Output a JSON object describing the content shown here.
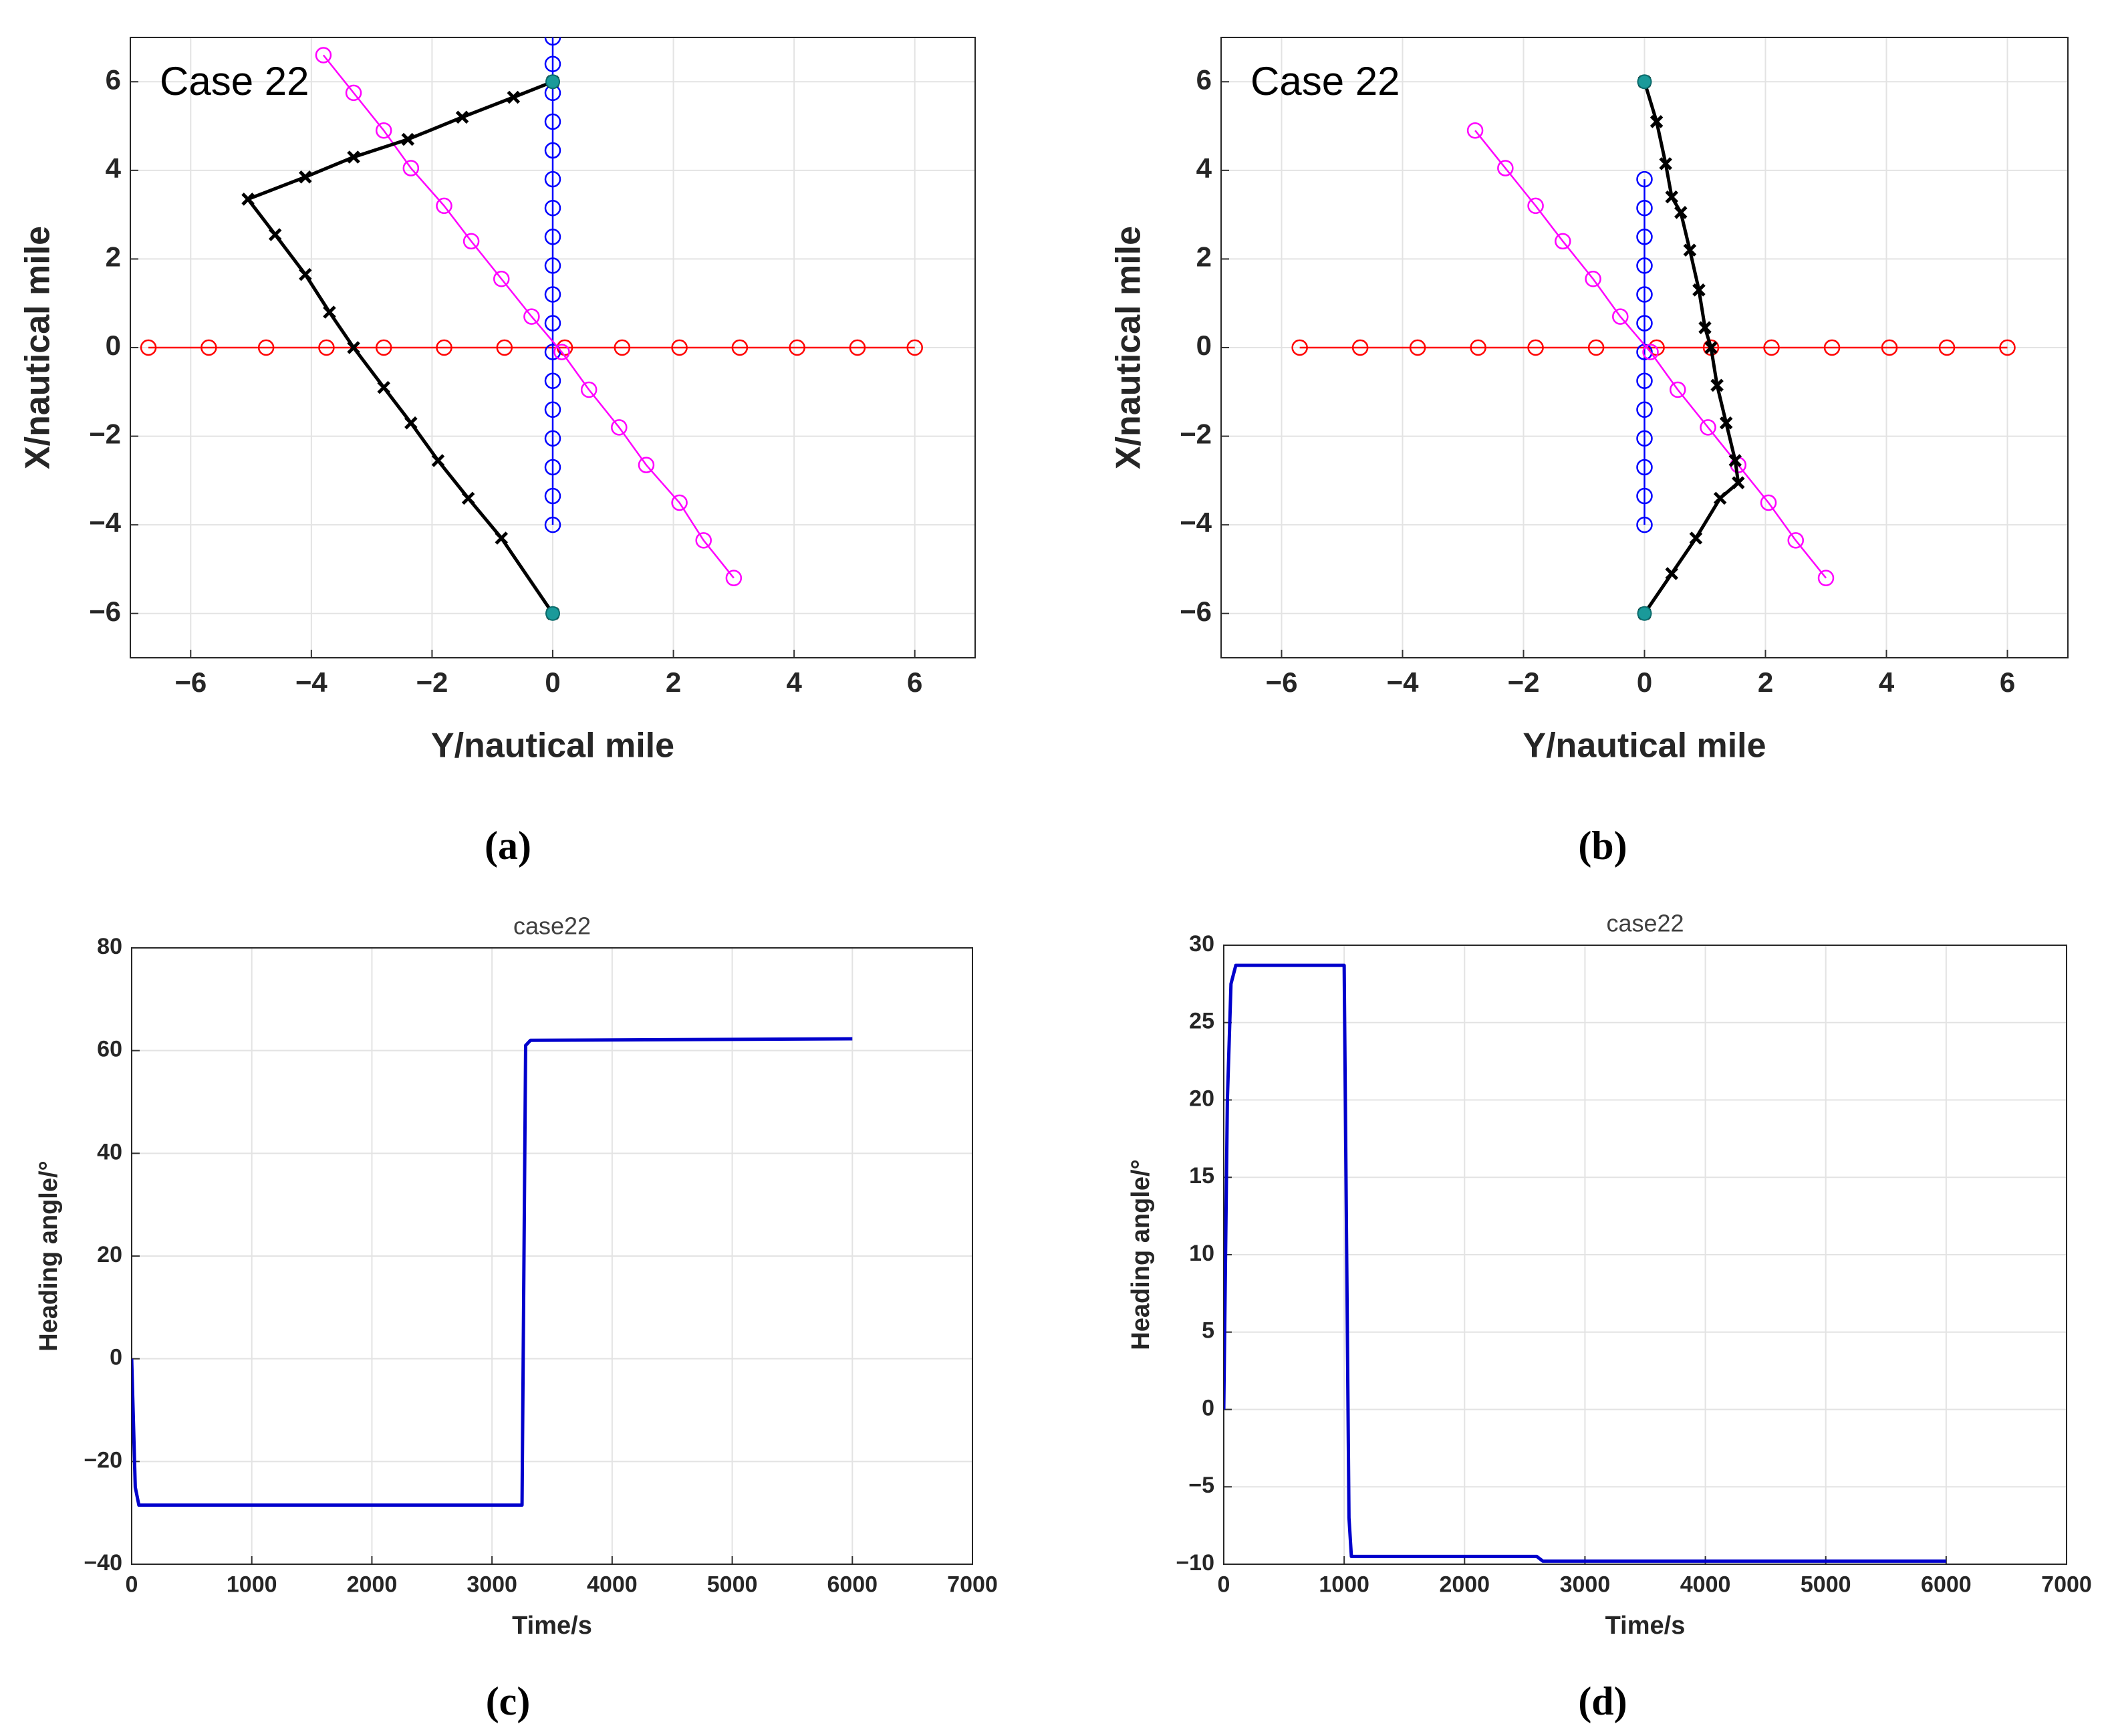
{
  "chart_data": [
    {
      "type": "line",
      "caption": "(a)",
      "annotation": "Case 22",
      "xlabel": "Y/nautical mile",
      "ylabel": "X/nautical mile",
      "xlim": [
        -7,
        7
      ],
      "ylim": [
        -7,
        7
      ],
      "xticks": [
        {
          "value": -6,
          "label": "−6"
        },
        {
          "value": -4,
          "label": "−4"
        },
        {
          "value": -2,
          "label": "−2"
        },
        0,
        2,
        4,
        6
      ],
      "yticks": [
        {
          "value": -6,
          "label": "−6"
        },
        {
          "value": -4,
          "label": "−4"
        },
        {
          "value": -2,
          "label": "−2"
        },
        0,
        2,
        4,
        6
      ],
      "grid": true,
      "series": [
        {
          "color": "#ff0000",
          "marker": "o",
          "x": [
            -6.7,
            -5.7,
            -4.75,
            -3.75,
            -2.8,
            -1.8,
            -0.8,
            0.2,
            1.15,
            2.1,
            3.1,
            4.05,
            5.05,
            6.0
          ],
          "values": [
            0,
            0,
            0,
            0,
            0,
            0,
            0,
            0,
            0,
            0,
            0,
            0,
            0,
            0
          ]
        },
        {
          "color": "#0000ff",
          "marker": "o",
          "x": [
            0,
            0,
            0,
            0,
            0,
            0,
            0,
            0,
            0,
            0,
            0,
            0,
            0,
            0,
            0,
            0,
            0,
            0
          ],
          "values": [
            -4,
            -3.35,
            -2.7,
            -2.05,
            -1.4,
            -0.75,
            -0.1,
            0.55,
            1.2,
            1.85,
            2.5,
            3.15,
            3.8,
            4.45,
            5.1,
            5.75,
            6.4,
            7
          ]
        },
        {
          "color": "#ff00ff",
          "marker": "o",
          "x": [
            3,
            2.5,
            2.1,
            1.55,
            1.1,
            0.6,
            0.15,
            -0.35,
            -0.85,
            -1.35,
            -1.8,
            -2.35,
            -2.8,
            -3.3,
            -3.8
          ],
          "values": [
            -5.2,
            -4.35,
            -3.5,
            -2.65,
            -1.8,
            -0.95,
            -0.1,
            0.7,
            1.55,
            2.4,
            3.2,
            4.05,
            4.9,
            5.75,
            6.6
          ]
        },
        {
          "color": "#000000",
          "marker": "x",
          "width": 5,
          "x": [
            0,
            -0.85,
            -1.4,
            -1.9,
            -2.35,
            -2.8,
            -3.3,
            -3.7,
            -4.1,
            -4.6,
            -5.05,
            -4.1,
            -3.3,
            -2.4,
            -1.5,
            -0.65,
            0
          ],
          "values": [
            -6,
            -4.3,
            -3.4,
            -2.55,
            -1.7,
            -0.9,
            0,
            0.8,
            1.65,
            2.55,
            3.35,
            3.85,
            4.3,
            4.7,
            5.2,
            5.65,
            6
          ]
        },
        {
          "color": "#1a9a9a",
          "marker": "dot",
          "noline": true,
          "x": [
            0,
            0
          ],
          "values": [
            -6,
            6
          ]
        }
      ]
    },
    {
      "type": "line",
      "caption": "(b)",
      "annotation": "Case 22",
      "xlabel": "Y/nautical mile",
      "ylabel": "X/nautical mile",
      "xlim": [
        -7,
        7
      ],
      "ylim": [
        -7,
        7
      ],
      "xticks": [
        {
          "value": -6,
          "label": "−6"
        },
        {
          "value": -4,
          "label": "−4"
        },
        {
          "value": -2,
          "label": "−2"
        },
        0,
        2,
        4,
        6
      ],
      "yticks": [
        {
          "value": -6,
          "label": "−6"
        },
        {
          "value": -4,
          "label": "−4"
        },
        {
          "value": -2,
          "label": "−2"
        },
        0,
        2,
        4,
        6
      ],
      "grid": true,
      "series": [
        {
          "color": "#ff0000",
          "marker": "o",
          "x": [
            -5.7,
            -4.7,
            -3.75,
            -2.75,
            -1.8,
            -0.8,
            0.2,
            1.1,
            2.1,
            3.1,
            4.05,
            5.0,
            6.0
          ],
          "values": [
            0,
            0,
            0,
            0,
            0,
            0,
            0,
            0,
            0,
            0,
            0,
            0,
            0
          ]
        },
        {
          "color": "#0000ff",
          "marker": "o",
          "x": [
            0,
            0,
            0,
            0,
            0,
            0,
            0,
            0,
            0,
            0,
            0,
            0,
            0
          ],
          "values": [
            -4,
            -3.35,
            -2.7,
            -2.05,
            -1.4,
            -0.75,
            -0.1,
            0.55,
            1.2,
            1.85,
            2.5,
            3.15,
            3.8
          ]
        },
        {
          "color": "#ff00ff",
          "marker": "o",
          "x": [
            3,
            2.5,
            2.05,
            1.55,
            1.05,
            0.55,
            0.1,
            -0.4,
            -0.85,
            -1.35,
            -1.8,
            -2.3,
            -2.8
          ],
          "values": [
            -5.2,
            -4.35,
            -3.5,
            -2.65,
            -1.8,
            -0.95,
            -0.1,
            0.7,
            1.55,
            2.4,
            3.2,
            4.05,
            4.9
          ]
        },
        {
          "color": "#000000",
          "marker": "x",
          "width": 5,
          "x": [
            0,
            0.45,
            0.85,
            1.25,
            1.55,
            1.5,
            1.35,
            1.2,
            1.1,
            1.0,
            0.9,
            0.75,
            0.6,
            0.45,
            0.35,
            0.2,
            0
          ],
          "values": [
            -6,
            -5.1,
            -4.3,
            -3.4,
            -3.05,
            -2.55,
            -1.7,
            -0.85,
            0,
            0.45,
            1.3,
            2.2,
            3.05,
            3.4,
            4.15,
            5.1,
            6
          ]
        },
        {
          "color": "#1a9a9a",
          "marker": "dot",
          "noline": true,
          "x": [
            0,
            0
          ],
          "values": [
            -6,
            6
          ]
        }
      ]
    },
    {
      "type": "line",
      "caption": "(c)",
      "title": "case22",
      "xlabel": "Time/s",
      "ylabel": "Heading angle/°",
      "xlim": [
        0,
        7000
      ],
      "ylim": [
        -40,
        80
      ],
      "xticks": [
        0,
        1000,
        2000,
        3000,
        4000,
        5000,
        6000,
        7000
      ],
      "yticks": [
        {
          "value": -40,
          "label": "−40"
        },
        {
          "value": -20,
          "label": "−20"
        },
        0,
        20,
        40,
        60,
        80
      ],
      "grid": true,
      "series": [
        {
          "color": "#0000cc",
          "width": 5,
          "x": [
            0,
            30,
            60,
            3250,
            3280,
            3320,
            6000
          ],
          "values": [
            0,
            -25,
            -28.5,
            -28.5,
            61,
            62,
            62.3
          ]
        }
      ]
    },
    {
      "type": "line",
      "caption": "(d)",
      "title": "case22",
      "xlabel": "Time/s",
      "ylabel": "Heading angle/°",
      "xlim": [
        0,
        7000
      ],
      "ylim": [
        -10,
        30
      ],
      "xticks": [
        0,
        1000,
        2000,
        3000,
        4000,
        5000,
        6000,
        7000
      ],
      "yticks": [
        {
          "value": -10,
          "label": "−10"
        },
        {
          "value": -5,
          "label": "−5"
        },
        0,
        5,
        10,
        15,
        20,
        25,
        30
      ],
      "grid": true,
      "series": [
        {
          "color": "#0000cc",
          "width": 5,
          "x": [
            0,
            30,
            60,
            100,
            1000,
            1040,
            1060,
            2600,
            2650,
            6000
          ],
          "values": [
            0,
            20,
            27.5,
            28.7,
            28.7,
            -7,
            -9.5,
            -9.5,
            -9.8,
            -9.8
          ]
        }
      ]
    }
  ]
}
